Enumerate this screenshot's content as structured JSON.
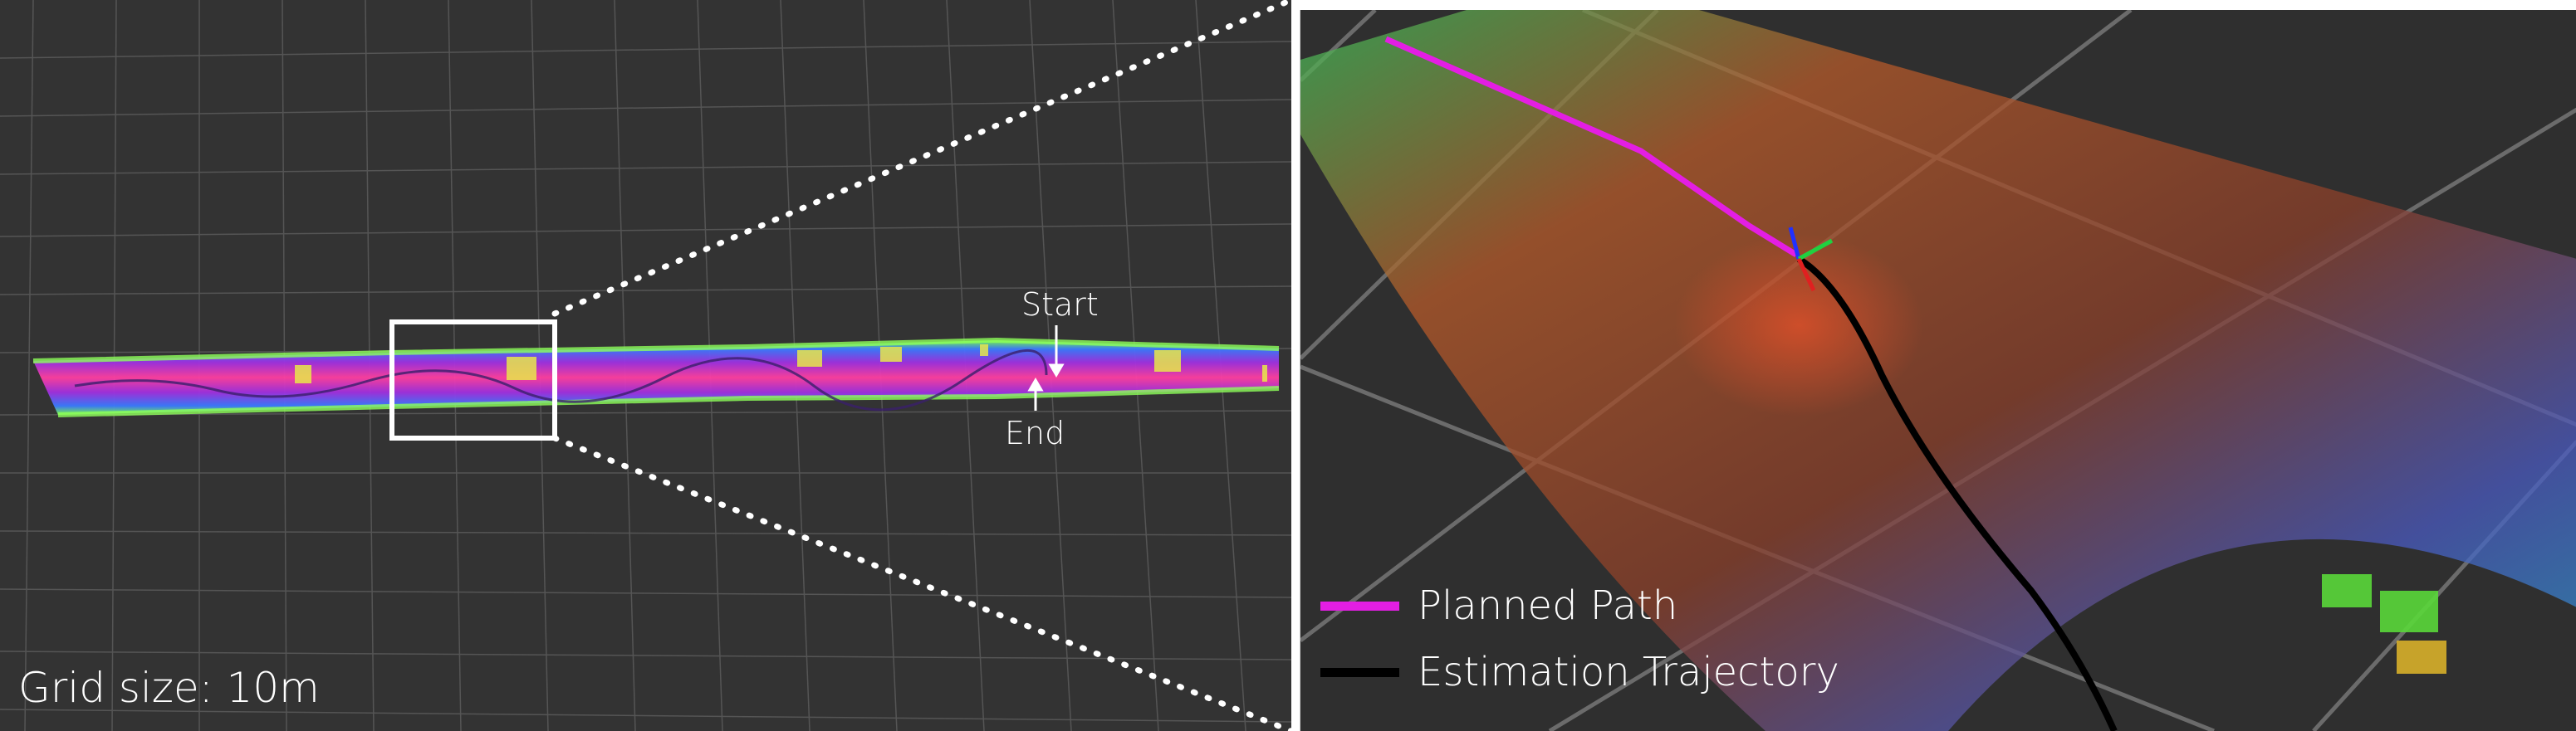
{
  "left_panel": {
    "grid_label": "Grid size: 10m",
    "start_label": "Start",
    "end_label": "End"
  },
  "legend": {
    "items": [
      {
        "label": "Planned Path",
        "color": "#e31ee3"
      },
      {
        "label": "Estimation Trajectory",
        "color": "#000000"
      }
    ]
  },
  "colors": {
    "background": "#333333",
    "grid": "#5a5a5a",
    "planned_path": "#e31ee3",
    "trajectory": "#000000"
  }
}
